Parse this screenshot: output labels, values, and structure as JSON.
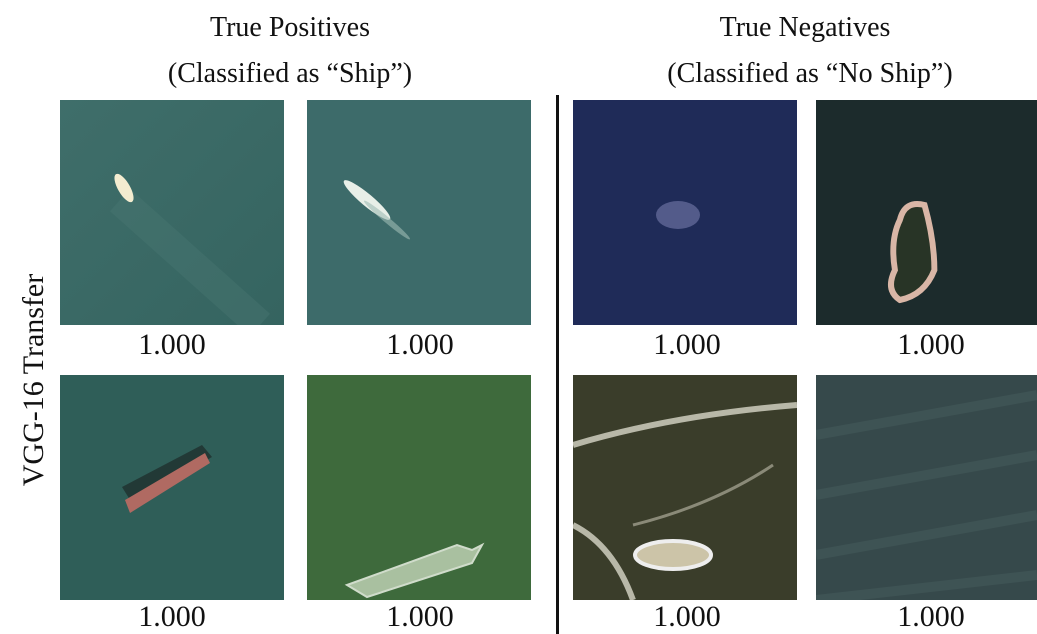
{
  "row_label": "VGG-16 Transfer",
  "groups": [
    {
      "title": "True Positives",
      "subtitle": "(Classified  as “Ship”)",
      "scores": [
        "1.000",
        "1.000",
        "1.000",
        "1.000"
      ]
    },
    {
      "title": "True Negatives",
      "subtitle": "(Classified  as “No Ship”)",
      "scores": [
        "1.000",
        "1.000",
        "1.000",
        "1.000"
      ]
    }
  ]
}
